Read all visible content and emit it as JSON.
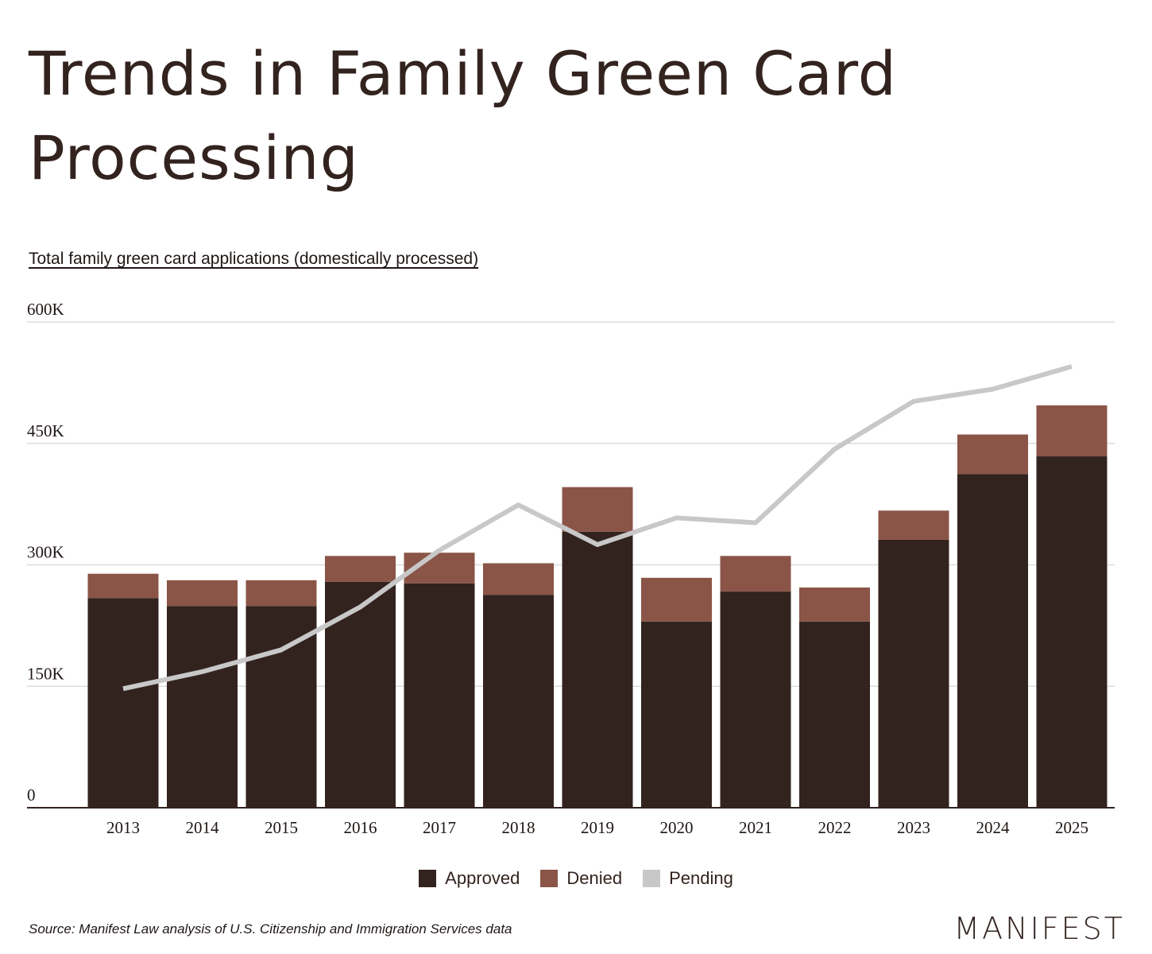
{
  "header": {
    "title": "Trends in Family Green Card Processing",
    "subtitle": "Total family green card applications (domestically processed)"
  },
  "footer": {
    "source": "Source: Manifest Law analysis of U.S. Citizenship and Immigration Services data",
    "logo": "MANIFEST"
  },
  "colors": {
    "approved": "#33231f",
    "denied": "#8a5547",
    "pending": "#c8c8c8",
    "grid": "#dcdcdc",
    "axis": "#33231f"
  },
  "chart_data": {
    "type": "bar",
    "stacked": true,
    "title": "Trends in Family Green Card Processing",
    "subtitle": "Total family green card applications (domestically processed)",
    "categories": [
      "2013",
      "2014",
      "2015",
      "2016",
      "2017",
      "2018",
      "2019",
      "2020",
      "2021",
      "2022",
      "2023",
      "2024",
      "2025"
    ],
    "series": [
      {
        "name": "Approved",
        "type": "bar",
        "color": "#33231f",
        "values": [
          259,
          249,
          249,
          279,
          277,
          263,
          341,
          230,
          267,
          230,
          331,
          412,
          434
        ]
      },
      {
        "name": "Denied",
        "type": "bar",
        "color": "#8a5547",
        "values": [
          30,
          32,
          32,
          32,
          38,
          39,
          55,
          54,
          44,
          42,
          36,
          49,
          63
        ]
      },
      {
        "name": "Pending",
        "type": "line",
        "color": "#c8c8c8",
        "values": [
          147,
          168,
          195,
          248,
          318,
          374,
          325,
          358,
          352,
          443,
          502,
          517,
          545
        ]
      }
    ],
    "yticks": [
      "0",
      "150K",
      "300K",
      "450K",
      "600K"
    ],
    "yunit": "thousands",
    "ylim": [
      0,
      600
    ],
    "grid": true,
    "legend": "bottom-center"
  }
}
